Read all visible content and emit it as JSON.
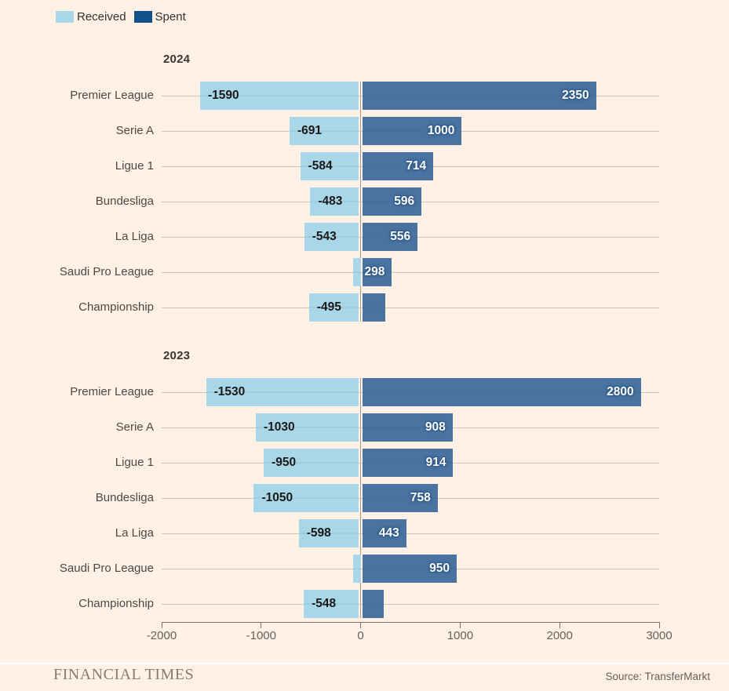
{
  "legend": {
    "received": "Received",
    "spent": "Spent"
  },
  "colors": {
    "background": "#FFF1E5",
    "received": "#A9D7E8",
    "spent_bar": "#4A73A2",
    "spent_legend": "#11508A",
    "gridline": "#CDC3B6",
    "zero_line": "#A39B90",
    "axis_line": "#7B746B",
    "axis_text": "#66605C",
    "received_label": "#1A1817",
    "spent_label": "#FFFFFF"
  },
  "axis": {
    "min": -2000,
    "max": 3000,
    "ticks": [
      -2000,
      -1000,
      0,
      1000,
      2000,
      3000
    ],
    "tick_labels": [
      "-2000",
      "-1000",
      "0",
      "1000",
      "2000",
      "3000"
    ]
  },
  "footer": {
    "brand": "FINANCIAL TIMES",
    "source": "Source: TransferMarkt"
  },
  "chart_data": [
    {
      "type": "bar",
      "orientation": "horizontal-diverging",
      "title": "2024",
      "categories": [
        "Premier League",
        "Serie A",
        "Ligue 1",
        "Bundesliga",
        "La Liga",
        "Saudi Pro League",
        "Championship"
      ],
      "series": [
        {
          "name": "Received",
          "values": [
            -1590,
            -691,
            -584,
            -483,
            -543,
            -55,
            -495
          ]
        },
        {
          "name": "Spent",
          "values": [
            2350,
            1000,
            714,
            596,
            556,
            298,
            230
          ]
        }
      ],
      "bar_labels": {
        "received": [
          "-1590",
          "-691",
          "-584",
          "-483",
          "-543",
          "",
          "-495"
        ],
        "spent": [
          "2350",
          "1000",
          "714",
          "596",
          "556",
          "298",
          ""
        ]
      },
      "xlim": [
        -2000,
        3000
      ],
      "grid": true,
      "legend_position": "top-left"
    },
    {
      "type": "bar",
      "orientation": "horizontal-diverging",
      "title": "2023",
      "categories": [
        "Premier League",
        "Serie A",
        "Ligue 1",
        "Bundesliga",
        "La Liga",
        "Saudi Pro League",
        "Championship"
      ],
      "series": [
        {
          "name": "Received",
          "values": [
            -1530,
            -1030,
            -950,
            -1050,
            -598,
            -50,
            -548
          ]
        },
        {
          "name": "Spent",
          "values": [
            2800,
            908,
            914,
            758,
            443,
            950,
            215
          ]
        }
      ],
      "bar_labels": {
        "received": [
          "-1530",
          "-1030",
          "-950",
          "-1050",
          "-598",
          "",
          "-548"
        ],
        "spent": [
          "2800",
          "908",
          "914",
          "758",
          "443",
          "950",
          ""
        ]
      },
      "xlim": [
        -2000,
        3000
      ],
      "grid": true,
      "legend_position": "top-left"
    }
  ]
}
